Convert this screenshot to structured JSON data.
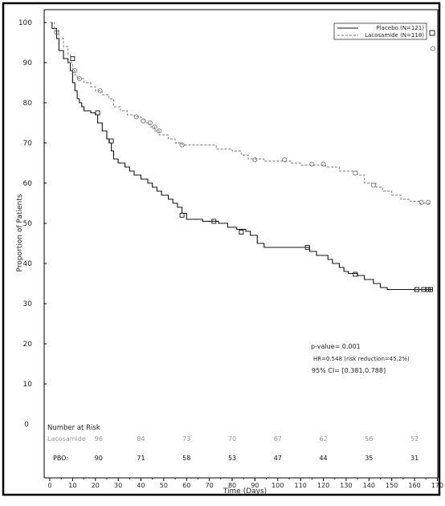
{
  "chart_data": {
    "type": "line",
    "subtype": "kaplan-meier",
    "title": "",
    "xlabel": "Time (Days)",
    "ylabel": "Proportion of Patients",
    "xlim": [
      0,
      170
    ],
    "ylim": [
      0,
      100
    ],
    "x_ticks": [
      0,
      10,
      20,
      30,
      40,
      50,
      60,
      70,
      80,
      90,
      100,
      110,
      120,
      130,
      140,
      150,
      160,
      170
    ],
    "y_ticks": [
      0,
      10,
      20,
      30,
      40,
      50,
      60,
      70,
      80,
      90,
      100
    ],
    "grid": false,
    "legend_position": "top-right",
    "series": [
      {
        "name": "Placebo (N=121)",
        "style": "solid",
        "color": "#111111",
        "censor_marker": "square",
        "steps": [
          [
            0,
            100
          ],
          [
            1,
            98.5
          ],
          [
            3,
            96
          ],
          [
            4,
            93
          ],
          [
            6,
            91
          ],
          [
            8,
            90
          ],
          [
            9,
            88
          ],
          [
            10,
            85
          ],
          [
            11,
            83
          ],
          [
            12,
            81
          ],
          [
            13,
            80
          ],
          [
            14,
            79
          ],
          [
            15,
            78
          ],
          [
            18,
            77.5
          ],
          [
            20,
            77
          ],
          [
            21,
            75
          ],
          [
            23,
            73
          ],
          [
            25,
            71
          ],
          [
            26,
            70
          ],
          [
            27,
            68
          ],
          [
            28,
            66
          ],
          [
            30,
            65
          ],
          [
            33,
            64
          ],
          [
            35,
            63
          ],
          [
            37,
            62
          ],
          [
            40,
            61
          ],
          [
            43,
            60
          ],
          [
            45,
            59
          ],
          [
            47,
            58
          ],
          [
            49,
            57
          ],
          [
            52,
            56
          ],
          [
            54,
            55
          ],
          [
            56,
            54
          ],
          [
            58,
            52.5
          ],
          [
            60,
            51
          ],
          [
            67,
            50.5
          ],
          [
            74,
            50
          ],
          [
            78,
            49
          ],
          [
            82,
            48.5
          ],
          [
            86,
            48
          ],
          [
            88,
            47
          ],
          [
            91,
            45
          ],
          [
            94,
            44
          ],
          [
            114,
            43
          ],
          [
            117,
            42
          ],
          [
            122,
            41
          ],
          [
            124,
            40
          ],
          [
            127,
            39
          ],
          [
            129,
            38
          ],
          [
            131,
            37.5
          ],
          [
            135,
            37
          ],
          [
            138,
            36
          ],
          [
            142,
            35
          ],
          [
            145,
            34
          ],
          [
            148,
            33.5
          ]
        ],
        "end": 168,
        "censored": [
          [
            10,
            91
          ],
          [
            21,
            77.5
          ],
          [
            27,
            70.5
          ],
          [
            58,
            52
          ],
          [
            72,
            50.5
          ],
          [
            84,
            47.8
          ],
          [
            113,
            44
          ],
          [
            134,
            37.3
          ],
          [
            161,
            33.5
          ],
          [
            164,
            33.5
          ],
          [
            166,
            33.5
          ],
          [
            167,
            33.5
          ]
        ]
      },
      {
        "name": "Lacosamide (N=118)",
        "style": "dashed",
        "color": "#777777",
        "censor_marker": "circle",
        "steps": [
          [
            0,
            100
          ],
          [
            2,
            98
          ],
          [
            4,
            96
          ],
          [
            6,
            94
          ],
          [
            8,
            92
          ],
          [
            9,
            90
          ],
          [
            10,
            88
          ],
          [
            11,
            87
          ],
          [
            12,
            86
          ],
          [
            15,
            85
          ],
          [
            18,
            84
          ],
          [
            20,
            83
          ],
          [
            23,
            82
          ],
          [
            26,
            81
          ],
          [
            28,
            79
          ],
          [
            31,
            78
          ],
          [
            34,
            77
          ],
          [
            37,
            76.5
          ],
          [
            40,
            76
          ],
          [
            42,
            75
          ],
          [
            44,
            74
          ],
          [
            46,
            73
          ],
          [
            48,
            72
          ],
          [
            52,
            71
          ],
          [
            55,
            70
          ],
          [
            58,
            69.5
          ],
          [
            73,
            68.5
          ],
          [
            80,
            68
          ],
          [
            84,
            67
          ],
          [
            87,
            66
          ],
          [
            94,
            65.5
          ],
          [
            106,
            65
          ],
          [
            110,
            64.5
          ],
          [
            121,
            64
          ],
          [
            127,
            63
          ],
          [
            135,
            62
          ],
          [
            138,
            60
          ],
          [
            143,
            59
          ],
          [
            146,
            58
          ],
          [
            150,
            57
          ],
          [
            154,
            56
          ],
          [
            158,
            55.5
          ],
          [
            162,
            55
          ]
        ],
        "end": 167,
        "censored": [
          [
            3,
            97.5
          ],
          [
            11,
            88
          ],
          [
            13,
            86
          ],
          [
            22,
            83
          ],
          [
            38,
            76.5
          ],
          [
            41,
            75.5
          ],
          [
            44,
            75
          ],
          [
            46,
            74
          ],
          [
            48,
            73
          ],
          [
            58,
            69.5
          ],
          [
            90,
            65.8
          ],
          [
            103,
            65.8
          ],
          [
            115,
            64.7
          ],
          [
            120,
            64.7
          ],
          [
            134,
            62.5
          ],
          [
            142,
            59.5
          ],
          [
            163,
            55.2
          ],
          [
            166,
            55.2
          ],
          [
            168,
            93.5
          ]
        ]
      }
    ],
    "annotations": [
      "p-value= 0.001",
      "HR=0.548 (risk reduction=45.2%)",
      "95% CI= [0.381,0.788]"
    ],
    "number_at_risk": {
      "title": "Number at Risk",
      "rows": [
        {
          "label": "Lacosamide",
          "values": [
            96,
            84,
            73,
            70,
            67,
            62,
            56,
            52
          ],
          "color": "#9a9a9a"
        },
        {
          "label": "PBO:",
          "values": [
            90,
            71,
            58,
            53,
            47,
            44,
            35,
            31
          ],
          "color": "#111111"
        }
      ],
      "times": [
        20,
        40,
        60,
        80,
        100,
        120,
        140,
        160
      ]
    },
    "zero_row_label": "0"
  }
}
